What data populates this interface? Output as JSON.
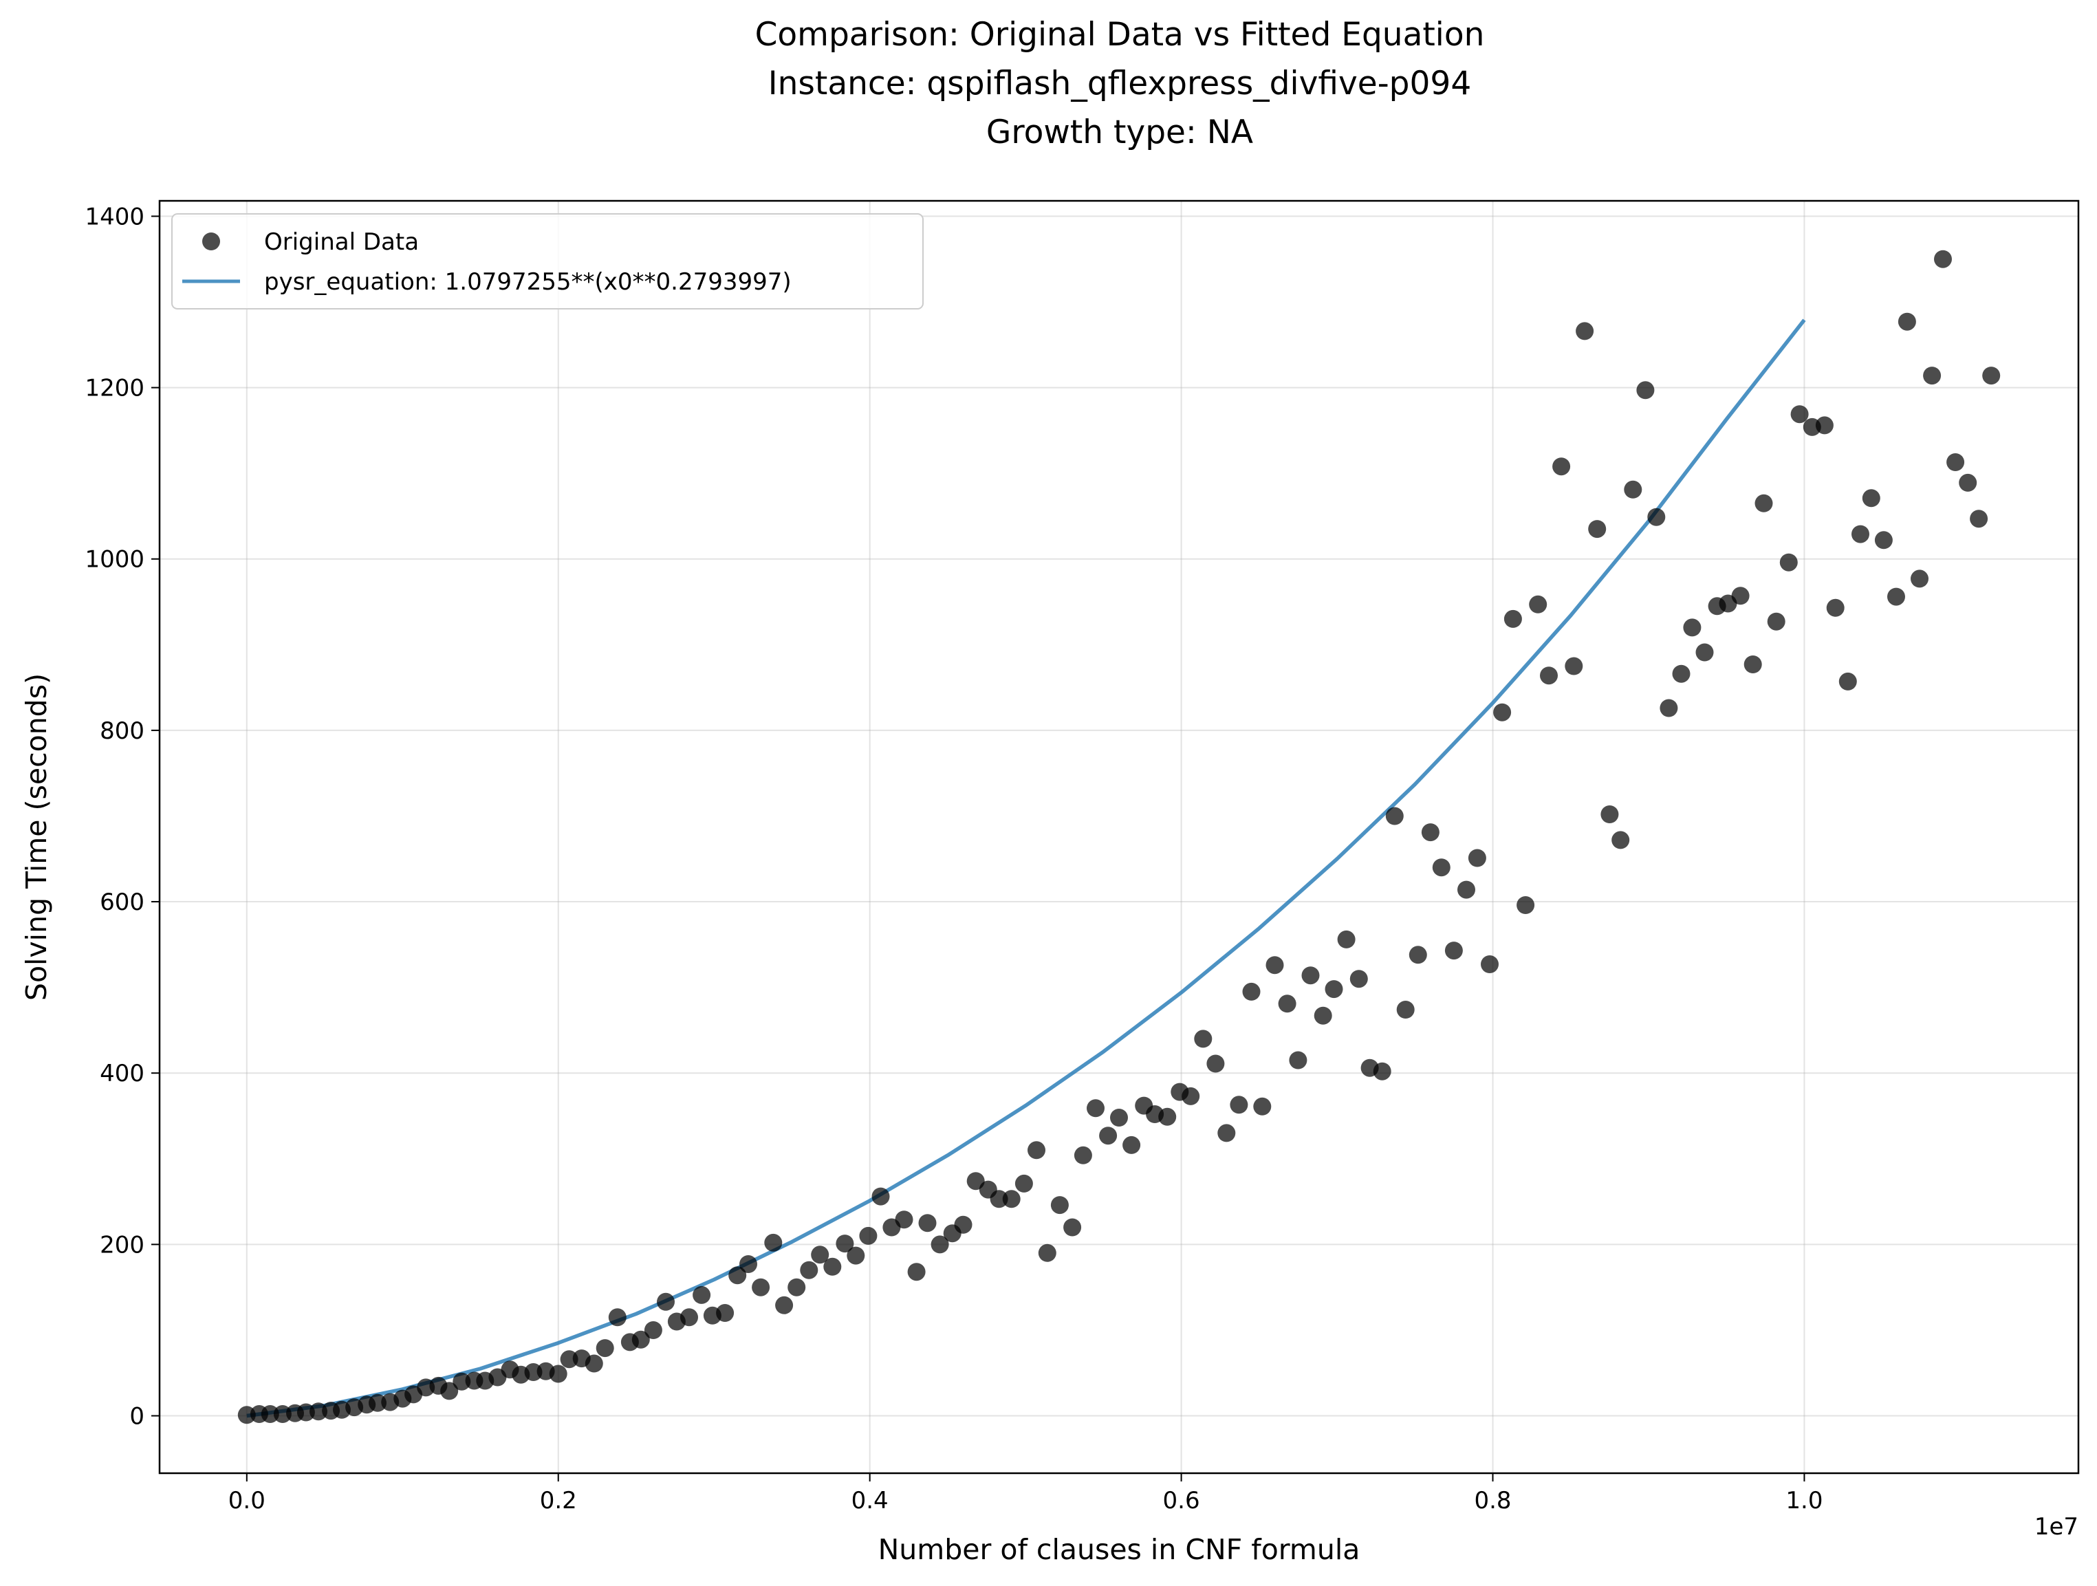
{
  "chart_data": {
    "type": "scatter",
    "title_lines": [
      "Comparison: Original Data vs Fitted Equation",
      "Instance: qspiflash_qflexpress_divfive-p094",
      "Growth type: NA"
    ],
    "xlabel": "Number of clauses in CNF formula",
    "ylabel": "Solving Time (seconds)",
    "x_offset_label": "1e7",
    "x_scale": 10000000,
    "xlim": [
      -0.056,
      1.176
    ],
    "ylim": [
      -67,
      1418
    ],
    "xticks": [
      0.0,
      0.2,
      0.4,
      0.6,
      0.8,
      1.0
    ],
    "xtick_labels": [
      "0.0",
      "0.2",
      "0.4",
      "0.6",
      "0.8",
      "1.0"
    ],
    "yticks": [
      0,
      200,
      400,
      600,
      800,
      1000,
      1200,
      1400
    ],
    "ytick_labels": [
      "0",
      "200",
      "400",
      "600",
      "800",
      "1000",
      "1200",
      "1400"
    ],
    "grid": true,
    "legend_position": "upper-left",
    "series": [
      {
        "name": "Original Data",
        "kind": "scatter",
        "color": "#000000",
        "alpha": 0.7,
        "points": [
          [
            0.0,
            1
          ],
          [
            0.008,
            2
          ],
          [
            0.015,
            2
          ],
          [
            0.023,
            2
          ],
          [
            0.031,
            3
          ],
          [
            0.038,
            4
          ],
          [
            0.046,
            5
          ],
          [
            0.054,
            6
          ],
          [
            0.061,
            7
          ],
          [
            0.069,
            10
          ],
          [
            0.077,
            13
          ],
          [
            0.084,
            15
          ],
          [
            0.092,
            16
          ],
          [
            0.1,
            20
          ],
          [
            0.107,
            25
          ],
          [
            0.115,
            33
          ],
          [
            0.123,
            35
          ],
          [
            0.13,
            29
          ],
          [
            0.138,
            40
          ],
          [
            0.146,
            41
          ],
          [
            0.153,
            41
          ],
          [
            0.161,
            45
          ],
          [
            0.169,
            54
          ],
          [
            0.176,
            48
          ],
          [
            0.184,
            51
          ],
          [
            0.192,
            52
          ],
          [
            0.2,
            49
          ],
          [
            0.207,
            66
          ],
          [
            0.215,
            67
          ],
          [
            0.223,
            61
          ],
          [
            0.23,
            79
          ],
          [
            0.238,
            115
          ],
          [
            0.246,
            86
          ],
          [
            0.253,
            89
          ],
          [
            0.261,
            100
          ],
          [
            0.269,
            133
          ],
          [
            0.276,
            110
          ],
          [
            0.284,
            115
          ],
          [
            0.292,
            141
          ],
          [
            0.299,
            117
          ],
          [
            0.307,
            120
          ],
          [
            0.315,
            164
          ],
          [
            0.322,
            177
          ],
          [
            0.33,
            150
          ],
          [
            0.338,
            202
          ],
          [
            0.345,
            129
          ],
          [
            0.353,
            150
          ],
          [
            0.361,
            170
          ],
          [
            0.368,
            188
          ],
          [
            0.376,
            174
          ],
          [
            0.384,
            201
          ],
          [
            0.391,
            187
          ],
          [
            0.399,
            210
          ],
          [
            0.407,
            256
          ],
          [
            0.414,
            220
          ],
          [
            0.422,
            229
          ],
          [
            0.43,
            168
          ],
          [
            0.437,
            225
          ],
          [
            0.445,
            200
          ],
          [
            0.453,
            213
          ],
          [
            0.46,
            223
          ],
          [
            0.468,
            274
          ],
          [
            0.476,
            264
          ],
          [
            0.483,
            253
          ],
          [
            0.491,
            253
          ],
          [
            0.499,
            271
          ],
          [
            0.507,
            310
          ],
          [
            0.514,
            190
          ],
          [
            0.522,
            246
          ],
          [
            0.53,
            220
          ],
          [
            0.537,
            304
          ],
          [
            0.545,
            359
          ],
          [
            0.553,
            327
          ],
          [
            0.56,
            348
          ],
          [
            0.568,
            316
          ],
          [
            0.576,
            362
          ],
          [
            0.583,
            352
          ],
          [
            0.591,
            349
          ],
          [
            0.599,
            378
          ],
          [
            0.606,
            373
          ],
          [
            0.614,
            440
          ],
          [
            0.622,
            411
          ],
          [
            0.629,
            330
          ],
          [
            0.637,
            363
          ],
          [
            0.645,
            495
          ],
          [
            0.652,
            361
          ],
          [
            0.66,
            526
          ],
          [
            0.668,
            481
          ],
          [
            0.675,
            415
          ],
          [
            0.683,
            514
          ],
          [
            0.691,
            467
          ],
          [
            0.698,
            498
          ],
          [
            0.706,
            556
          ],
          [
            0.714,
            510
          ],
          [
            0.721,
            406
          ],
          [
            0.729,
            402
          ],
          [
            0.737,
            700
          ],
          [
            0.744,
            474
          ],
          [
            0.752,
            538
          ],
          [
            0.76,
            681
          ],
          [
            0.767,
            640
          ],
          [
            0.775,
            543
          ],
          [
            0.783,
            614
          ],
          [
            0.79,
            651
          ],
          [
            0.798,
            527
          ],
          [
            0.806,
            821
          ],
          [
            0.813,
            930
          ],
          [
            0.821,
            596
          ],
          [
            0.829,
            947
          ],
          [
            0.836,
            864
          ],
          [
            0.844,
            1108
          ],
          [
            0.852,
            875
          ],
          [
            0.859,
            1266
          ],
          [
            0.867,
            1035
          ],
          [
            0.875,
            702
          ],
          [
            0.882,
            672
          ],
          [
            0.89,
            1081
          ],
          [
            0.898,
            1197
          ],
          [
            0.905,
            1049
          ],
          [
            0.913,
            826
          ],
          [
            0.921,
            866
          ],
          [
            0.928,
            920
          ],
          [
            0.936,
            891
          ],
          [
            0.944,
            945
          ],
          [
            0.951,
            948
          ],
          [
            0.959,
            957
          ],
          [
            0.967,
            877
          ],
          [
            0.974,
            1065
          ],
          [
            0.982,
            927
          ],
          [
            0.99,
            996
          ],
          [
            0.997,
            1169
          ],
          [
            1.005,
            1154
          ],
          [
            1.013,
            1156
          ],
          [
            1.02,
            943
          ],
          [
            1.028,
            857
          ],
          [
            1.036,
            1029
          ],
          [
            1.043,
            1071
          ],
          [
            1.051,
            1022
          ],
          [
            1.059,
            956
          ],
          [
            1.066,
            1277
          ],
          [
            1.074,
            977
          ],
          [
            1.082,
            1214
          ],
          [
            1.089,
            1350
          ],
          [
            1.097,
            1113
          ],
          [
            1.105,
            1089
          ],
          [
            1.112,
            1047
          ],
          [
            1.12,
            1214
          ]
        ]
      },
      {
        "name": "pysr_equation: 1.0797255**(x0**0.2793997)",
        "kind": "line",
        "color": "#1f77b4",
        "alpha": 0.8,
        "points": [
          [
            0.0,
            0
          ],
          [
            0.05,
            12
          ],
          [
            0.1,
            31
          ],
          [
            0.15,
            55
          ],
          [
            0.2,
            85
          ],
          [
            0.25,
            119
          ],
          [
            0.3,
            159
          ],
          [
            0.35,
            203
          ],
          [
            0.4,
            251
          ],
          [
            0.45,
            304
          ],
          [
            0.5,
            362
          ],
          [
            0.55,
            425
          ],
          [
            0.6,
            494
          ],
          [
            0.65,
            569
          ],
          [
            0.7,
            650
          ],
          [
            0.75,
            737
          ],
          [
            0.8,
            832
          ],
          [
            0.85,
            934
          ],
          [
            0.9,
            1044
          ],
          [
            0.95,
            1163
          ],
          [
            1.0,
            1279
          ]
        ]
      }
    ]
  }
}
